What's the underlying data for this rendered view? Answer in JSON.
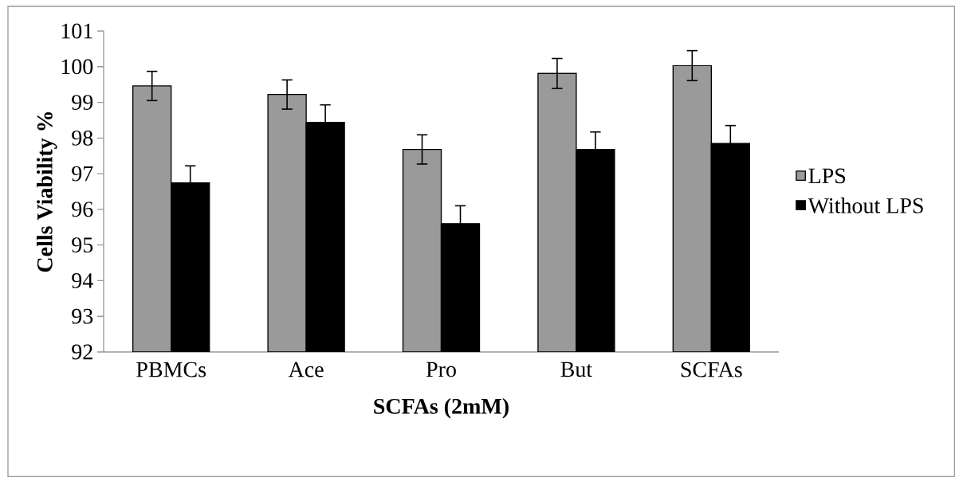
{
  "chart_data": {
    "type": "bar",
    "xlabel": "SCFAs (2mM)",
    "ylabel": "Cells Viability %",
    "categories": [
      "PBMCs",
      "Ace",
      "Pro",
      "But",
      "SCFAs"
    ],
    "series": [
      {
        "name": "LPS",
        "color": "#9a9a9a",
        "values": [
          99.46,
          99.22,
          97.68,
          99.81,
          100.03
        ],
        "errors": [
          0.41,
          0.41,
          0.41,
          0.42,
          0.42
        ]
      },
      {
        "name": "Without LPS",
        "color": "#000000",
        "values": [
          96.74,
          98.44,
          95.6,
          97.68,
          97.85
        ],
        "errors": [
          0.48,
          0.49,
          0.5,
          0.49,
          0.5
        ]
      }
    ],
    "ylim": [
      92,
      101
    ],
    "yticks": [
      92,
      93,
      94,
      95,
      96,
      97,
      98,
      99,
      100,
      101
    ],
    "grid": false,
    "legend": "right"
  }
}
